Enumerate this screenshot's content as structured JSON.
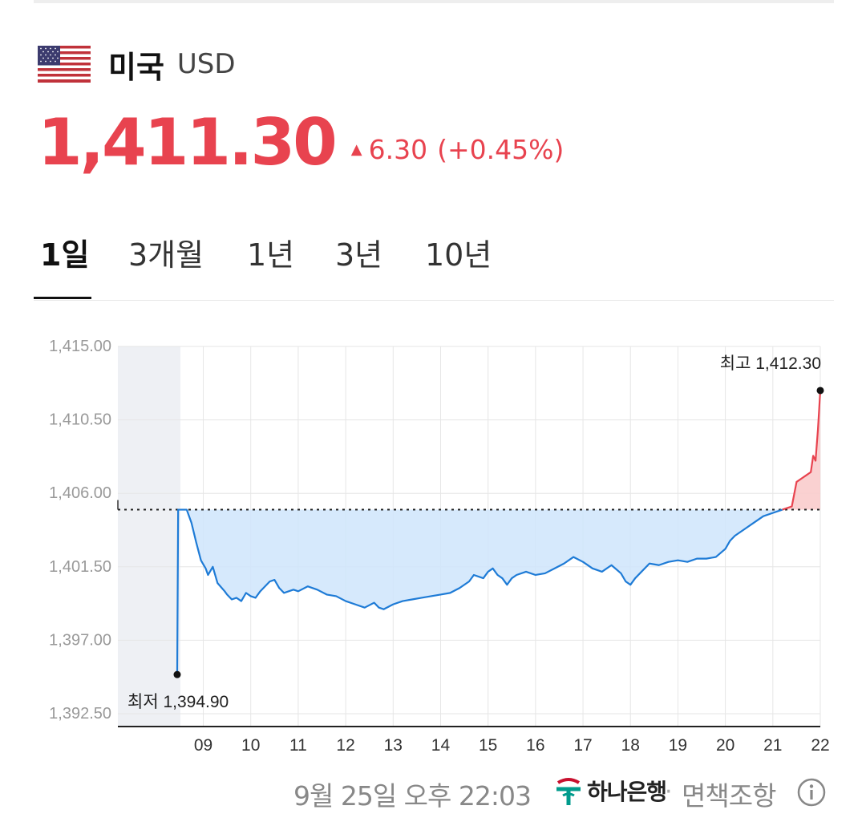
{
  "header": {
    "country": "미국",
    "code": "USD"
  },
  "quote": {
    "price": "1,411.30",
    "change_arrow": "▲",
    "change_abs": "6.30",
    "change_pct": "(+0.45%)",
    "up_color": "#e8434f",
    "down_color": "#1e7bd6"
  },
  "tabs": [
    {
      "label": "1일",
      "active": true
    },
    {
      "label": "3개월",
      "active": false
    },
    {
      "label": "1년",
      "active": false
    },
    {
      "label": "3년",
      "active": false
    },
    {
      "label": "10년",
      "active": false
    }
  ],
  "chart_data": {
    "type": "line",
    "yticks": [
      "1,415.00",
      "1,410.50",
      "1,406.00",
      "1,401.50",
      "1,397.00",
      "1,392.50"
    ],
    "ylim": [
      1392.5,
      1415.0
    ],
    "xticks": [
      "09",
      "10",
      "11",
      "12",
      "13",
      "14",
      "15",
      "16",
      "17",
      "18",
      "19",
      "20",
      "21",
      "22"
    ],
    "xlim": [
      7.2,
      22.0
    ],
    "night_icon": "moon-icon",
    "reference_value": 1405.0,
    "series": [
      {
        "x": [
          8.45,
          8.47,
          8.55,
          8.65,
          8.75,
          8.85,
          8.95,
          9.05,
          9.1,
          9.2,
          9.3,
          9.45,
          9.5,
          9.6,
          9.7,
          9.8,
          9.9,
          10.0,
          10.1,
          10.2,
          10.3,
          10.4,
          10.5,
          10.6,
          10.7,
          10.8,
          10.9,
          11.0,
          11.2,
          11.4,
          11.6,
          11.8,
          12.0,
          12.2,
          12.4,
          12.6,
          12.7,
          12.8,
          13.0,
          13.2,
          13.4,
          13.6,
          13.8,
          14.0,
          14.2,
          14.4,
          14.6,
          14.7,
          14.9,
          15.0,
          15.1,
          15.2,
          15.3,
          15.4,
          15.5,
          15.6,
          15.8,
          16.0,
          16.2,
          16.4,
          16.6,
          16.8,
          17.0,
          17.2,
          17.4,
          17.6,
          17.8,
          17.9,
          18.0,
          18.1,
          18.2,
          18.4,
          18.6,
          18.8,
          19.0,
          19.2,
          19.4,
          19.6,
          19.8,
          20.0,
          20.1,
          20.2,
          20.4,
          20.6,
          20.8,
          21.0,
          21.2,
          21.4,
          21.5,
          21.6,
          21.7,
          21.8,
          21.85,
          21.9,
          21.95,
          22.0
        ],
        "y": [
          1394.9,
          1405.0,
          1405.0,
          1405.0,
          1404.2,
          1403.0,
          1401.9,
          1401.4,
          1401.0,
          1401.5,
          1400.5,
          1400.0,
          1399.8,
          1399.5,
          1399.6,
          1399.4,
          1399.9,
          1399.7,
          1399.6,
          1400.0,
          1400.3,
          1400.6,
          1400.7,
          1400.2,
          1399.9,
          1400.0,
          1400.1,
          1400.0,
          1400.3,
          1400.1,
          1399.8,
          1399.7,
          1399.4,
          1399.2,
          1399.0,
          1399.3,
          1399.0,
          1398.9,
          1399.2,
          1399.4,
          1399.5,
          1399.6,
          1399.7,
          1399.8,
          1399.9,
          1400.2,
          1400.6,
          1401.0,
          1400.8,
          1401.2,
          1401.4,
          1401.0,
          1400.8,
          1400.4,
          1400.8,
          1401.0,
          1401.2,
          1401.0,
          1401.1,
          1401.4,
          1401.7,
          1402.1,
          1401.8,
          1401.4,
          1401.2,
          1401.6,
          1401.1,
          1400.6,
          1400.4,
          1400.8,
          1401.1,
          1401.7,
          1401.6,
          1401.8,
          1401.9,
          1401.8,
          1402.0,
          1402.0,
          1402.1,
          1402.6,
          1403.1,
          1403.4,
          1403.8,
          1404.2,
          1404.6,
          1404.8,
          1405.0,
          1405.2,
          1406.7,
          1406.9,
          1407.1,
          1407.3,
          1408.3,
          1408.0,
          1409.9,
          1412.3
        ]
      }
    ],
    "min_label": "최저 1,394.90",
    "max_label": "최고 1,412.30"
  },
  "footer": {
    "date": "9월 25일 오후 22:03",
    "bank": "하나은행",
    "separator": "·",
    "disclaimer": "면책조항"
  }
}
